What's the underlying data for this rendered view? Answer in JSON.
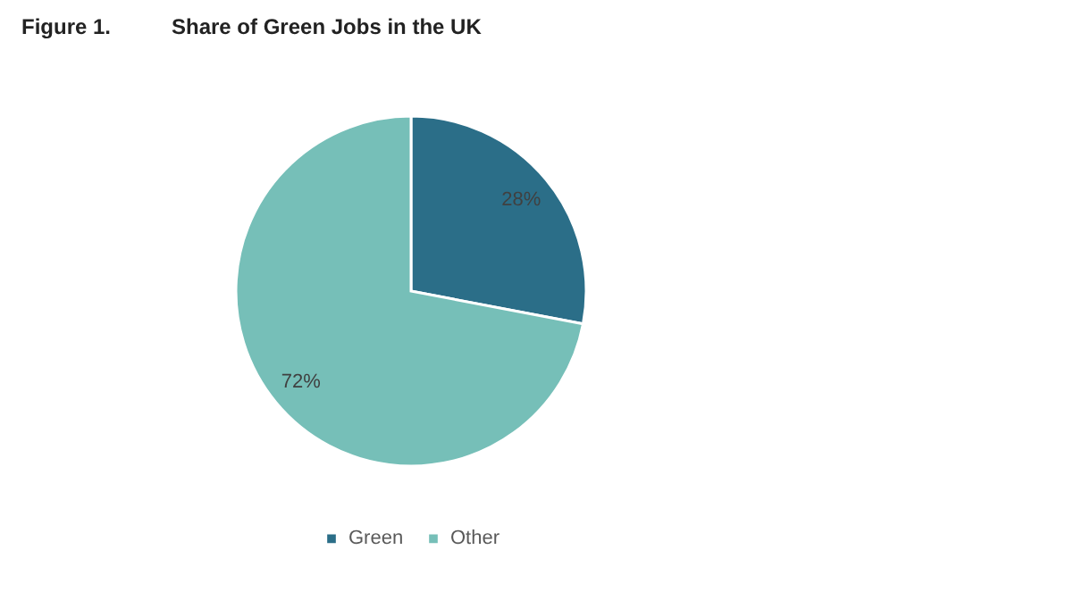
{
  "chart_data": {
    "type": "pie",
    "title": "Figure 1.",
    "subtitle": "Share of Green Jobs in the UK",
    "categories": [
      "Green",
      "Other"
    ],
    "values": [
      28,
      72
    ],
    "colors": [
      "#2b6e88",
      "#76bfb8"
    ],
    "value_labels": [
      "28%",
      "72%"
    ],
    "legend": "bottom"
  }
}
